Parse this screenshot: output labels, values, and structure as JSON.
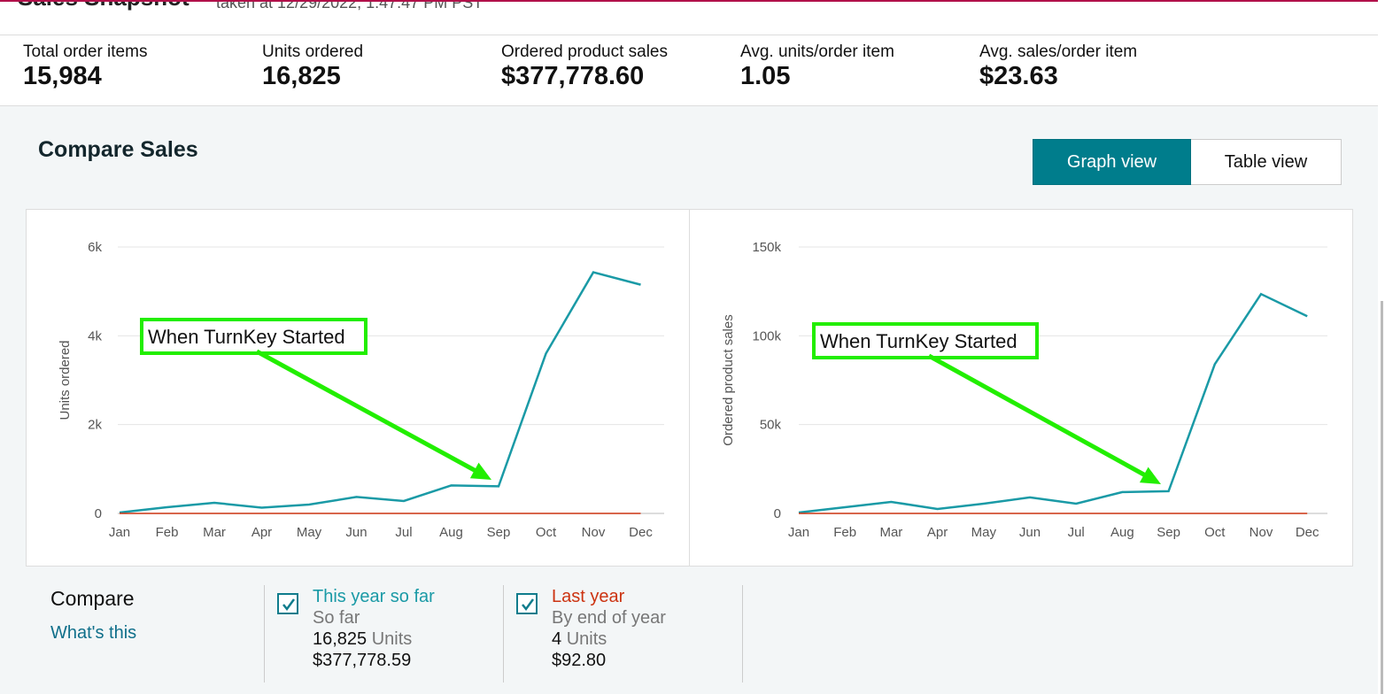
{
  "header": {
    "title": "Sales Snapshot",
    "taken": "taken at 12/29/2022, 1:47:47 PM PST"
  },
  "metrics": [
    {
      "label": "Total order items",
      "value": "15,984"
    },
    {
      "label": "Units ordered",
      "value": "16,825"
    },
    {
      "label": "Ordered product sales",
      "value": "$377,778.60"
    },
    {
      "label": "Avg. units/order item",
      "value": "1.05"
    },
    {
      "label": "Avg. sales/order item",
      "value": "$23.63"
    }
  ],
  "compare": {
    "title": "Compare Sales",
    "graph_view": "Graph view",
    "table_view": "Table view"
  },
  "colors": {
    "this_year": "#1a9aa6",
    "last_year": "#cc3311",
    "annotation": "#22ee00",
    "accent": "#007d8c"
  },
  "chart_data": [
    {
      "type": "line",
      "ylabel": "Units ordered",
      "xlabel": "",
      "categories": [
        "Jan",
        "Feb",
        "Mar",
        "Apr",
        "May",
        "Jun",
        "Jul",
        "Aug",
        "Sep",
        "Oct",
        "Nov",
        "Dec"
      ],
      "yticks": [
        "0",
        "2k",
        "4k",
        "6k"
      ],
      "ylim": [
        0,
        6000
      ],
      "grid": true,
      "series": [
        {
          "name": "This year so far",
          "values": [
            20,
            140,
            240,
            130,
            200,
            370,
            280,
            630,
            610,
            3600,
            5430,
            5150
          ]
        },
        {
          "name": "Last year",
          "values": [
            0,
            0,
            0,
            0,
            0,
            0,
            0,
            0,
            0,
            0,
            0,
            0
          ]
        }
      ],
      "annotation": "When TurnKey Started"
    },
    {
      "type": "line",
      "ylabel": "Ordered product sales",
      "xlabel": "",
      "categories": [
        "Jan",
        "Feb",
        "Mar",
        "Apr",
        "May",
        "Jun",
        "Jul",
        "Aug",
        "Sep",
        "Oct",
        "Nov",
        "Dec"
      ],
      "yticks": [
        "0",
        "50k",
        "100k",
        "150k"
      ],
      "ylim": [
        0,
        150000
      ],
      "grid": true,
      "series": [
        {
          "name": "This year so far",
          "values": [
            500,
            3500,
            6500,
            2500,
            5500,
            9000,
            5500,
            12000,
            12500,
            84000,
            123500,
            111000
          ]
        },
        {
          "name": "Last year",
          "values": [
            0,
            0,
            0,
            0,
            0,
            0,
            0,
            0,
            0,
            0,
            0,
            0
          ]
        }
      ],
      "annotation": "When TurnKey Started"
    }
  ],
  "legend": {
    "compare_label": "Compare",
    "whats_this": "What's this",
    "this_year": {
      "name": "This year so far",
      "sub": "So far",
      "units_num": "16,825",
      "units_word": "Units",
      "sales": "$377,778.59",
      "checked": true
    },
    "last_year": {
      "name": "Last year",
      "sub": "By end of year",
      "units_num": "4",
      "units_word": "Units",
      "sales": "$92.80",
      "checked": true
    }
  }
}
